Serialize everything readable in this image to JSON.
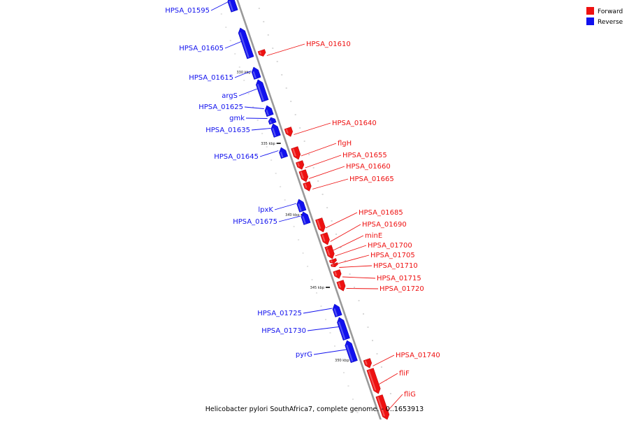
{
  "colors": {
    "forward": "#ee1111",
    "reverse": "#1111ee",
    "backbone": "#9a9a9a"
  },
  "legend": [
    {
      "label": "Forward",
      "strand": "forward"
    },
    {
      "label": "Reverse",
      "strand": "reverse"
    }
  ],
  "caption": "Helicobacter pylori SouthAfrica7, complete genome. - 0..1653913",
  "scale_ticks": [
    {
      "label": "330 kbp",
      "side": "left"
    },
    {
      "label": "335 kbp",
      "side": "left"
    },
    {
      "label": "340 kbp",
      "side": "left"
    },
    {
      "label": "345 kbp",
      "side": "left"
    },
    {
      "label": "350 kbp",
      "side": "left"
    }
  ],
  "genes": [
    {
      "label": "HPSA_01595",
      "strand": "reverse"
    },
    {
      "label": "HPSA_01605",
      "strand": "reverse"
    },
    {
      "label": "HPSA_01610",
      "strand": "forward"
    },
    {
      "label": "HPSA_01615",
      "strand": "reverse"
    },
    {
      "label": "argS",
      "strand": "reverse"
    },
    {
      "label": "HPSA_01625",
      "strand": "reverse"
    },
    {
      "label": "gmk",
      "strand": "reverse"
    },
    {
      "label": "HPSA_01635",
      "strand": "reverse"
    },
    {
      "label": "HPSA_01640",
      "strand": "forward"
    },
    {
      "label": "HPSA_01645",
      "strand": "reverse"
    },
    {
      "label": "flgH",
      "strand": "forward"
    },
    {
      "label": "HPSA_01655",
      "strand": "forward"
    },
    {
      "label": "HPSA_01660",
      "strand": "forward"
    },
    {
      "label": "HPSA_01665",
      "strand": "forward"
    },
    {
      "label": "lpxK",
      "strand": "reverse"
    },
    {
      "label": "HPSA_01675",
      "strand": "reverse"
    },
    {
      "label": "HPSA_01685",
      "strand": "forward"
    },
    {
      "label": "HPSA_01690",
      "strand": "forward"
    },
    {
      "label": "minE",
      "strand": "forward"
    },
    {
      "label": "HPSA_01700",
      "strand": "forward"
    },
    {
      "label": "HPSA_01705",
      "strand": "forward"
    },
    {
      "label": "HPSA_01710",
      "strand": "forward"
    },
    {
      "label": "HPSA_01715",
      "strand": "forward"
    },
    {
      "label": "HPSA_01720",
      "strand": "forward"
    },
    {
      "label": "HPSA_01725",
      "strand": "reverse"
    },
    {
      "label": "HPSA_01730",
      "strand": "reverse"
    },
    {
      "label": "pyrG",
      "strand": "reverse"
    },
    {
      "label": "HPSA_01740",
      "strand": "forward"
    },
    {
      "label": "fliF",
      "strand": "forward"
    },
    {
      "label": "fliG",
      "strand": "forward"
    }
  ]
}
